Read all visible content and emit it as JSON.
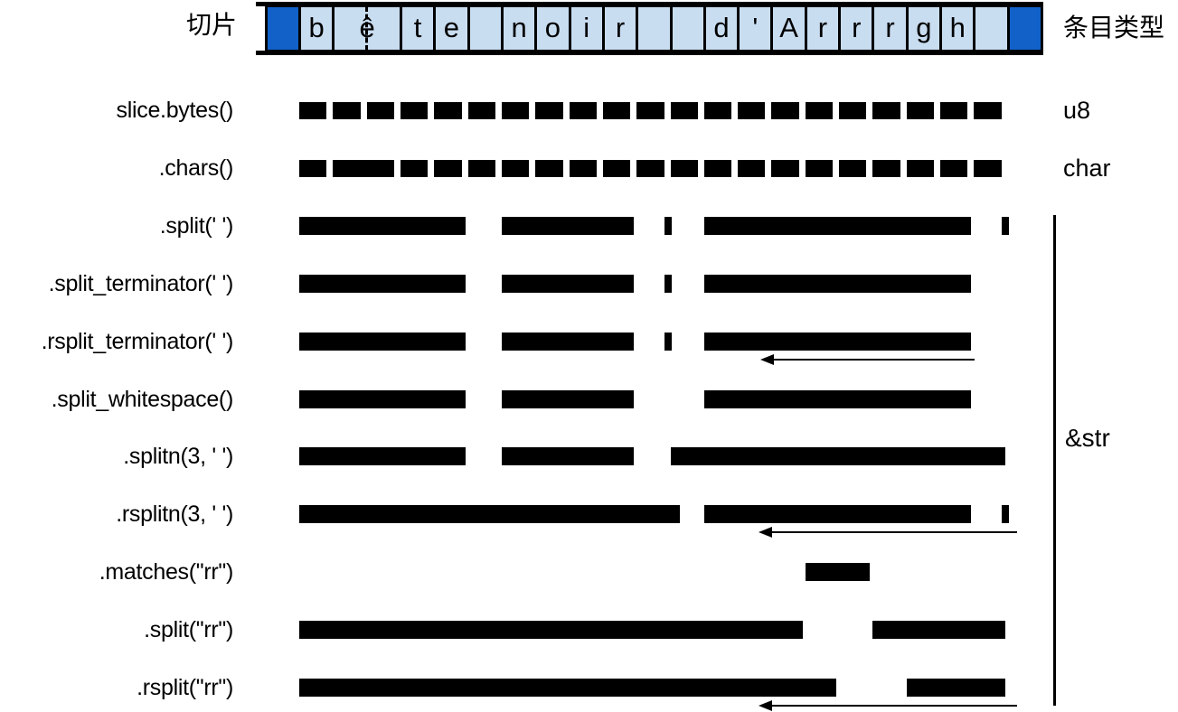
{
  "title_labels": {
    "slice": "切片",
    "item_type": "条目类型"
  },
  "string_value": "bête noir  d'Arrrgh ",
  "string_cells": [
    {
      "ch": "",
      "kind": "cap",
      "units": 1
    },
    {
      "ch": "b",
      "units": 1
    },
    {
      "ch": "ê",
      "units": 2,
      "multibyte": true
    },
    {
      "ch": "t",
      "units": 1
    },
    {
      "ch": "e",
      "units": 1
    },
    {
      "ch": "",
      "units": 1
    },
    {
      "ch": "n",
      "units": 1
    },
    {
      "ch": "o",
      "units": 1
    },
    {
      "ch": "i",
      "units": 1
    },
    {
      "ch": "r",
      "units": 1
    },
    {
      "ch": "",
      "units": 1
    },
    {
      "ch": "",
      "units": 1
    },
    {
      "ch": "d",
      "units": 1
    },
    {
      "ch": "'",
      "units": 1
    },
    {
      "ch": "A",
      "units": 1
    },
    {
      "ch": "r",
      "units": 1
    },
    {
      "ch": "r",
      "units": 1
    },
    {
      "ch": "r",
      "units": 1
    },
    {
      "ch": "g",
      "units": 1
    },
    {
      "ch": "h",
      "units": 1
    },
    {
      "ch": "",
      "units": 1
    },
    {
      "ch": "",
      "kind": "cap",
      "units": 1
    }
  ],
  "type_labels": {
    "bytes": "u8",
    "chars": "char",
    "str_group": "&str"
  },
  "rows": [
    {
      "label": "slice.bytes()",
      "kind": "bytes",
      "type_label": "u8"
    },
    {
      "label": ".chars()",
      "kind": "chars",
      "type_label": "char"
    },
    {
      "label": ".split(' ')",
      "kind": "spans",
      "segments": [
        {
          "s": 0,
          "e": 5,
          "text": "bête"
        },
        {
          "s": 6,
          "e": 10,
          "text": "noir"
        },
        {
          "empty_at": 11,
          "text": ""
        },
        {
          "s": 12,
          "e": 20,
          "text": "d'Arrrgh"
        },
        {
          "empty_at": 21,
          "text": ""
        }
      ]
    },
    {
      "label": ".split_terminator(' ')",
      "kind": "spans",
      "segments": [
        {
          "s": 0,
          "e": 5,
          "text": "bête"
        },
        {
          "s": 6,
          "e": 10,
          "text": "noir"
        },
        {
          "empty_at": 11,
          "text": ""
        },
        {
          "s": 12,
          "e": 20,
          "text": "d'Arrrgh"
        }
      ]
    },
    {
      "label": ".rsplit_terminator(' ')",
      "kind": "spans",
      "segments": [
        {
          "s": 0,
          "e": 5,
          "text": "bête"
        },
        {
          "s": 6,
          "e": 10,
          "text": "noir"
        },
        {
          "empty_at": 11,
          "text": ""
        },
        {
          "s": 12,
          "e": 20,
          "text": "d'Arrrgh"
        }
      ],
      "arrow": {
        "from": 13.7,
        "to": 20.05
      }
    },
    {
      "label": ".split_whitespace()",
      "kind": "spans",
      "segments": [
        {
          "s": 0,
          "e": 5,
          "text": "bête"
        },
        {
          "s": 6,
          "e": 10,
          "text": "noir"
        },
        {
          "s": 12,
          "e": 20,
          "text": "d'Arrrgh"
        }
      ]
    },
    {
      "label": ".splitn(3, ' ')",
      "kind": "spans",
      "segments": [
        {
          "s": 0,
          "e": 5,
          "text": "bête"
        },
        {
          "s": 6,
          "e": 10,
          "text": "noir"
        },
        {
          "s": 11,
          "e": 21,
          "text": " d'Arrrgh "
        }
      ]
    },
    {
      "label": ".rsplitn(3, ' ')",
      "kind": "spans",
      "segments": [
        {
          "s": 0,
          "e": 11.35,
          "text": "bête noir "
        },
        {
          "s": 12,
          "e": 20,
          "text": "d'Arrrgh"
        },
        {
          "empty_at": 21,
          "text": ""
        }
      ],
      "arrow": {
        "from": 13.65,
        "to": 21.3
      }
    },
    {
      "label": ".matches(\"rr\")",
      "kind": "spans",
      "segments": [
        {
          "s": 15,
          "e": 17,
          "text": "rr"
        }
      ]
    },
    {
      "label": ".split(\"rr\")",
      "kind": "spans",
      "segments": [
        {
          "s": 0,
          "e": 15,
          "text": "bête noir  d'A"
        },
        {
          "s": 17,
          "e": 21,
          "text": "rgh "
        }
      ]
    },
    {
      "label": ".rsplit(\"rr\")",
      "kind": "spans",
      "segments": [
        {
          "s": 0,
          "e": 16,
          "text": "bête noir  d'Ar"
        },
        {
          "s": 18,
          "e": 21,
          "text": "gh "
        }
      ],
      "arrow": {
        "from": 13.65,
        "to": 21.3
      }
    }
  ],
  "colors": {
    "cap_blue": "#1161c9",
    "cell_blue": "#c9ddf1",
    "bar_black": "#000000"
  }
}
